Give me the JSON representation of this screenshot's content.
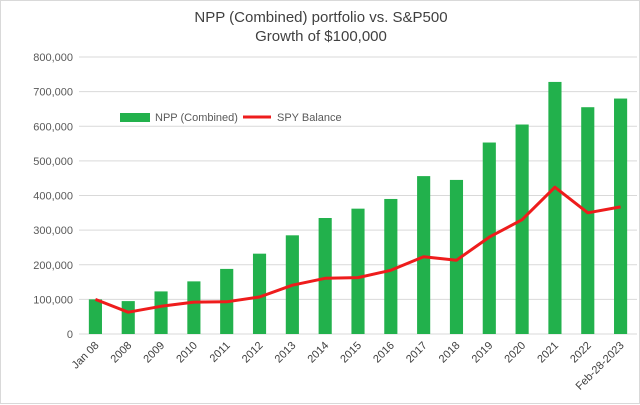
{
  "chart_data": {
    "type": "bar",
    "title": "NPP (Combined) portfolio  vs. S&P500",
    "subtitle": "Growth of $100,000",
    "categories": [
      "Jan 08",
      "2008",
      "2009",
      "2010",
      "2011",
      "2012",
      "2013",
      "2014",
      "2015",
      "2016",
      "2017",
      "2018",
      "2019",
      "2020",
      "2021",
      "2022",
      "Feb-28-2023"
    ],
    "series": [
      {
        "name": "NPP (Combined)",
        "type": "bar",
        "color": "#22b14c",
        "values": [
          100000,
          95000,
          123000,
          152000,
          188000,
          232000,
          285000,
          335000,
          362000,
          390000,
          456000,
          445000,
          553000,
          605000,
          728000,
          655000,
          680000
        ]
      },
      {
        "name": "SPY Balance",
        "type": "line",
        "color": "#ee1c1c",
        "values": [
          100000,
          63000,
          80000,
          92000,
          93000,
          107000,
          141000,
          161000,
          163000,
          184000,
          223000,
          213000,
          280000,
          330000,
          424000,
          350000,
          367000
        ]
      }
    ],
    "ylim": [
      0,
      800000
    ],
    "yticks": [
      "0",
      "100,000",
      "200,000",
      "300,000",
      "400,000",
      "500,000",
      "600,000",
      "700,000",
      "800,000"
    ],
    "grid": true,
    "legend_position": "top-left"
  }
}
